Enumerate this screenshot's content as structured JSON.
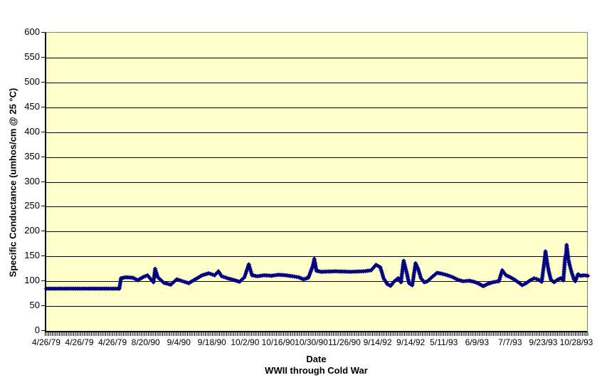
{
  "colors": {
    "plot_background": "#FFFFCC",
    "series": "#000080",
    "gridline": "#000000",
    "plot_border": "#808080",
    "axis_line": "#000000",
    "text": "#000000",
    "canvas": "#FFFFFF"
  },
  "chart_data": {
    "type": "line",
    "title": "",
    "xlabel": "Date",
    "xlabel_line2": "WWII through Cold War",
    "ylabel": "Specific Conductance (umhos/cm @ 25 °C)",
    "ylim": [
      0,
      600
    ],
    "ytick_step": 50,
    "yticks": [
      0,
      50,
      100,
      150,
      200,
      250,
      300,
      350,
      400,
      450,
      500,
      550,
      600
    ],
    "xtick_labels": [
      "4/26/79",
      "4/26/79",
      "4/26/79",
      "8/20/90",
      "9/4/90",
      "9/18/90",
      "10/2/90",
      "10/16/90",
      "10/30/90",
      "11/26/90",
      "9/14/92",
      "9/14/92",
      "5/11/93",
      "6/9/93",
      "7/7/93",
      "9/23/93",
      "10/28/93"
    ],
    "grid": "horizontal",
    "legend_position": "none",
    "marker": "diamond",
    "series": [
      {
        "color": "#000080",
        "points_format": [
          "x_percent_of_axis",
          "specific_conductance"
        ],
        "points": [
          [
            0,
            85
          ],
          [
            13.5,
            85
          ],
          [
            13.8,
            106
          ],
          [
            14.7,
            108
          ],
          [
            16,
            107
          ],
          [
            16.9,
            102
          ],
          [
            18,
            109
          ],
          [
            18.7,
            112
          ],
          [
            19.3,
            104
          ],
          [
            19.8,
            98
          ],
          [
            20.1,
            125
          ],
          [
            20.6,
            108
          ],
          [
            21.7,
            97
          ],
          [
            23,
            93
          ],
          [
            24.1,
            104
          ],
          [
            25.2,
            100
          ],
          [
            26.3,
            96
          ],
          [
            27.4,
            103
          ],
          [
            28.8,
            112
          ],
          [
            30,
            116
          ],
          [
            31.1,
            112
          ],
          [
            31.8,
            120
          ],
          [
            32.4,
            110
          ],
          [
            33.5,
            106
          ],
          [
            34.8,
            102
          ],
          [
            35.7,
            99
          ],
          [
            36.6,
            108
          ],
          [
            37.4,
            134
          ],
          [
            38,
            112
          ],
          [
            39,
            110
          ],
          [
            40.3,
            112
          ],
          [
            41.6,
            111
          ],
          [
            42.9,
            113
          ],
          [
            44.2,
            112
          ],
          [
            45.5,
            110
          ],
          [
            46.6,
            108
          ],
          [
            47.5,
            104
          ],
          [
            48.4,
            107
          ],
          [
            49.2,
            130
          ],
          [
            49.5,
            145
          ],
          [
            49.9,
            121
          ],
          [
            50.8,
            119
          ],
          [
            53.4,
            120
          ],
          [
            56.1,
            119
          ],
          [
            58.6,
            120
          ],
          [
            60,
            122
          ],
          [
            60.9,
            133
          ],
          [
            61.7,
            128
          ],
          [
            62.3,
            106
          ],
          [
            63,
            94
          ],
          [
            63.6,
            91
          ],
          [
            64.3,
            100
          ],
          [
            65,
            106
          ],
          [
            65.5,
            98
          ],
          [
            66,
            141
          ],
          [
            66.5,
            120
          ],
          [
            67,
            96
          ],
          [
            67.6,
            92
          ],
          [
            68.2,
            136
          ],
          [
            68.7,
            124
          ],
          [
            69.2,
            106
          ],
          [
            69.8,
            98
          ],
          [
            70.4,
            100
          ],
          [
            71.4,
            110
          ],
          [
            72.2,
            117
          ],
          [
            73.1,
            115
          ],
          [
            74.1,
            112
          ],
          [
            75.1,
            108
          ],
          [
            76,
            103
          ],
          [
            77,
            100
          ],
          [
            78.1,
            101
          ],
          [
            79,
            99
          ],
          [
            79.9,
            95
          ],
          [
            80.7,
            90
          ],
          [
            81.6,
            95
          ],
          [
            82.5,
            98
          ],
          [
            83.6,
            100
          ],
          [
            84.2,
            122
          ],
          [
            84.9,
            112
          ],
          [
            85.7,
            108
          ],
          [
            86.5,
            103
          ],
          [
            87.3,
            97
          ],
          [
            87.9,
            92
          ],
          [
            88.6,
            96
          ],
          [
            89.4,
            102
          ],
          [
            90.1,
            106
          ],
          [
            90.9,
            103
          ],
          [
            91.5,
            99
          ],
          [
            92,
            141
          ],
          [
            92.2,
            160
          ],
          [
            92.5,
            138
          ],
          [
            92.8,
            120
          ],
          [
            93.2,
            103
          ],
          [
            93.8,
            98
          ],
          [
            94.4,
            103
          ],
          [
            95,
            106
          ],
          [
            95.5,
            102
          ],
          [
            95.8,
            145
          ],
          [
            96,
            157
          ],
          [
            96.1,
            173
          ],
          [
            96.4,
            145
          ],
          [
            96.7,
            131
          ],
          [
            97,
            119
          ],
          [
            97.4,
            105
          ],
          [
            97.7,
            100
          ],
          [
            98.2,
            114
          ],
          [
            98.7,
            111
          ],
          [
            99.3,
            112
          ],
          [
            100,
            111
          ]
        ]
      }
    ]
  }
}
